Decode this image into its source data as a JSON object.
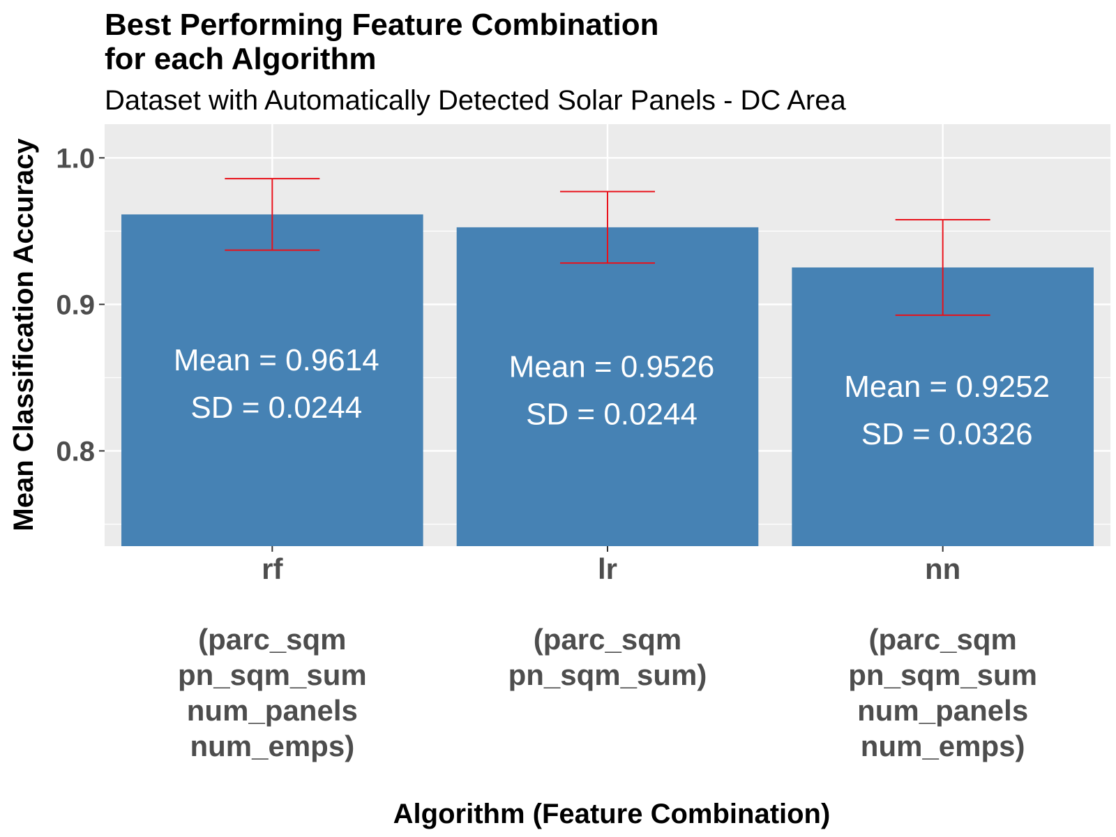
{
  "chart_data": {
    "type": "bar",
    "title_lines": [
      "Best Performing Feature Combination",
      "for each Algorithm"
    ],
    "subtitle": "Dataset with Automatically Detected Solar Panels - DC Area",
    "xlabel": "Algorithm (Feature Combination)",
    "ylabel": "Mean Classification Accuracy",
    "ylim": [
      0.735,
      1.023
    ],
    "yticks": [
      0.8,
      0.9,
      1.0
    ],
    "ytick_labels": [
      "0.8",
      "0.9",
      "1.0"
    ],
    "grid": true,
    "categories": [
      {
        "name": "rf",
        "features": [
          "(parc_sqm",
          "pn_sqm_sum",
          "num_panels",
          "num_emps)"
        ]
      },
      {
        "name": "lr",
        "features": [
          "(parc_sqm",
          "pn_sqm_sum)"
        ]
      },
      {
        "name": "nn",
        "features": [
          "(parc_sqm",
          "pn_sqm_sum",
          "num_panels",
          "num_emps)"
        ]
      }
    ],
    "values": [
      0.9614,
      0.9526,
      0.9252
    ],
    "sd": [
      0.0244,
      0.0244,
      0.0326
    ],
    "bar_labels": [
      {
        "mean": "Mean = 0.9614",
        "sd": "SD = 0.0244"
      },
      {
        "mean": "Mean = 0.9526",
        "sd": "SD = 0.0244"
      },
      {
        "mean": "Mean = 0.9252",
        "sd": "SD = 0.0326"
      }
    ],
    "colors": {
      "bar": "#4682b4",
      "errorbar": "#e8111a",
      "panel": "#ebebeb",
      "grid": "#ffffff"
    }
  }
}
